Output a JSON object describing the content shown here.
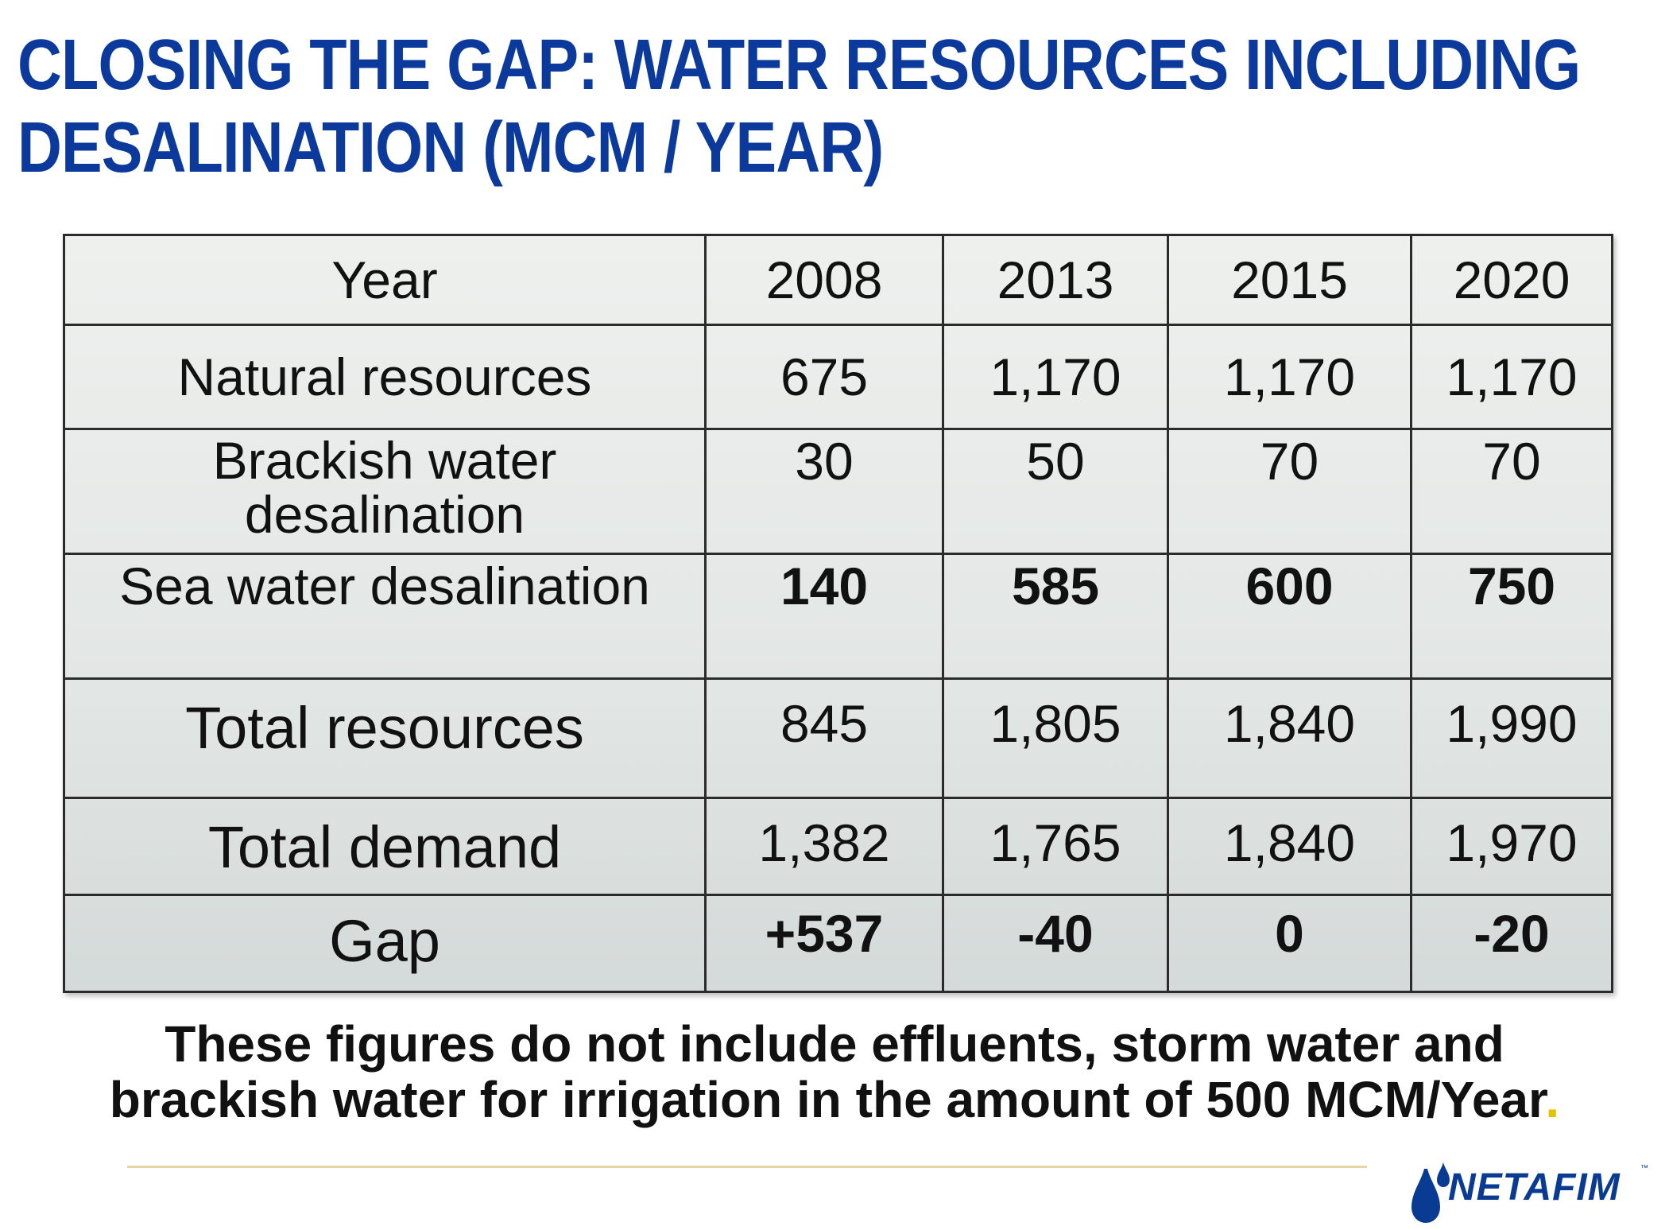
{
  "title": {
    "line1": "CLOSING THE GAP: WATER RESOURCES INCLUDING",
    "line2": "DESALINATION (MCM / YEAR)"
  },
  "table": {
    "header": {
      "label": "Year",
      "years": [
        "2008",
        "2013",
        "2015",
        "2020"
      ]
    },
    "rows": [
      {
        "label": "Natural resources",
        "values": [
          "675",
          "1,170",
          "1,170",
          "1,170"
        ]
      },
      {
        "label_line1": "Brackish water",
        "label_line2": "desalination",
        "values": [
          "30",
          "50",
          "70",
          "70"
        ]
      },
      {
        "label": "Sea water desalination",
        "values": [
          "140",
          "585",
          "600",
          "750"
        ]
      },
      {
        "label": "Total resources",
        "values": [
          "845",
          "1,805",
          "1,840",
          "1,990"
        ]
      },
      {
        "label": "Total demand",
        "values": [
          "1,382",
          "1,765",
          "1,840",
          "1,970"
        ]
      },
      {
        "label": "Gap",
        "values": [
          "+537",
          "-40",
          "0",
          "-20"
        ]
      }
    ]
  },
  "note": {
    "line1": "These figures do not include effluents, storm water and",
    "line2": "brackish water for irrigation in the amount of 500 MCM/Year",
    "end_dot": "."
  },
  "logo": {
    "name": "NETAFIM",
    "tm": "™",
    "drop_color": "#0a3b93"
  },
  "colors": {
    "title": "#0b3a9c",
    "rule": "#e6d7a8",
    "brand": "#0a3b93"
  }
}
